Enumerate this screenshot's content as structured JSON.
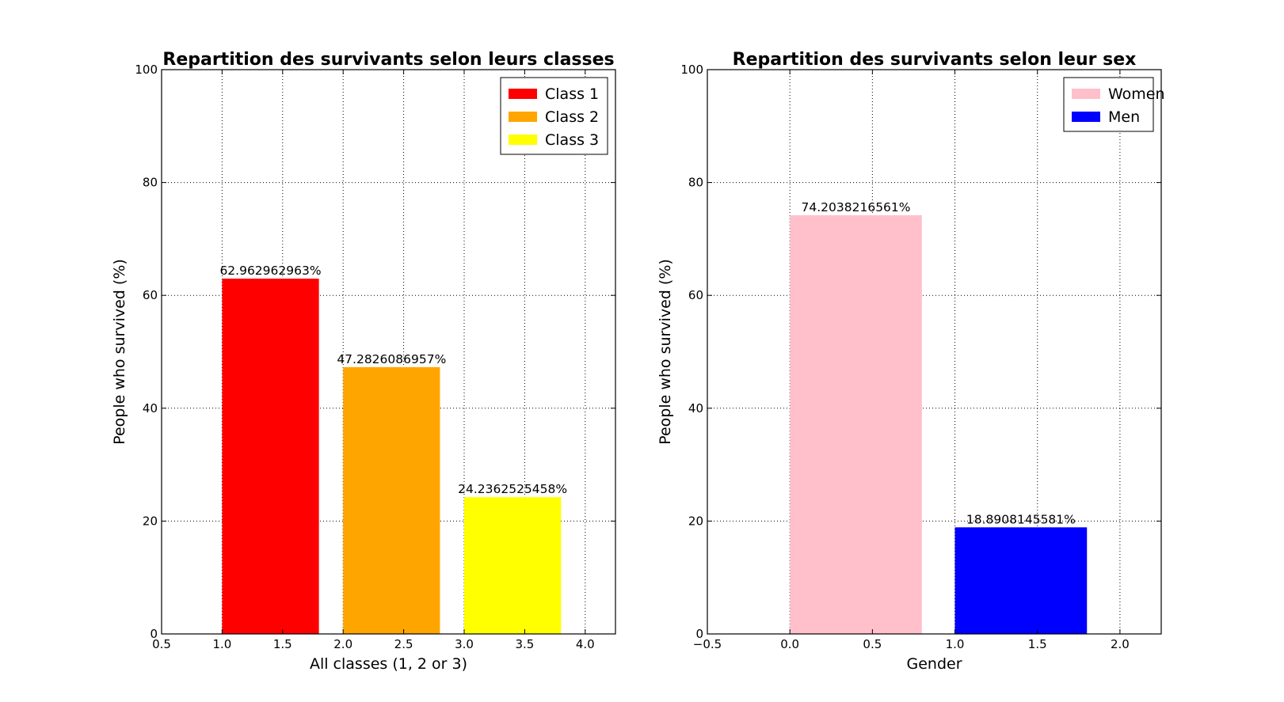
{
  "chart_data": [
    {
      "type": "bar",
      "title": "Repartition des survivants selon leurs classes",
      "xlabel": "All classes (1, 2 or 3)",
      "ylabel": "People who survived (%)",
      "xlim": [
        0.5,
        4.25
      ],
      "ylim": [
        0,
        100
      ],
      "xticks": [
        0.5,
        1.0,
        1.5,
        2.0,
        2.5,
        3.0,
        3.5,
        4.0
      ],
      "xtick_labels": [
        "0.5",
        "1.0",
        "1.5",
        "2.0",
        "2.5",
        "3.0",
        "3.5",
        "4.0"
      ],
      "yticks": [
        0,
        20,
        40,
        60,
        80,
        100
      ],
      "ytick_labels": [
        "0",
        "20",
        "40",
        "60",
        "80",
        "100"
      ],
      "grid": true,
      "legend_position": "top-right",
      "bars": [
        {
          "name": "Class 1",
          "x_start": 1.0,
          "x_end": 1.8,
          "value": 62.962962963,
          "label": "62.962962963%",
          "color": "#ff0000"
        },
        {
          "name": "Class 2",
          "x_start": 2.0,
          "x_end": 2.8,
          "value": 47.2826086957,
          "label": "47.2826086957%",
          "color": "#ffa500"
        },
        {
          "name": "Class 3",
          "x_start": 3.0,
          "x_end": 3.8,
          "value": 24.2362525458,
          "label": "24.2362525458%",
          "color": "#ffff00"
        }
      ]
    },
    {
      "type": "bar",
      "title": "Repartition des survivants selon leur sex",
      "xlabel": "Gender",
      "ylabel": "People who survived (%)",
      "xlim": [
        -0.5,
        2.25
      ],
      "ylim": [
        0,
        100
      ],
      "xticks": [
        -0.5,
        0.0,
        0.5,
        1.0,
        1.5,
        2.0
      ],
      "xtick_labels": [
        "−0.5",
        "0.0",
        "0.5",
        "1.0",
        "1.5",
        "2.0"
      ],
      "yticks": [
        0,
        20,
        40,
        60,
        80,
        100
      ],
      "ytick_labels": [
        "0",
        "20",
        "40",
        "60",
        "80",
        "100"
      ],
      "grid": true,
      "legend_position": "top-right",
      "bars": [
        {
          "name": "Women",
          "x_start": 0.0,
          "x_end": 0.8,
          "value": 74.2038216561,
          "label": "74.2038216561%",
          "color": "#ffc0cb"
        },
        {
          "name": "Men",
          "x_start": 1.0,
          "x_end": 1.8,
          "value": 18.8908145581,
          "label": "18.8908145581%",
          "color": "#0000ff"
        }
      ]
    }
  ]
}
